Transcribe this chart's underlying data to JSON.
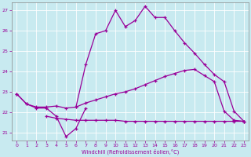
{
  "xlabel": "Windchill (Refroidissement éolien,°C)",
  "bg_color": "#c8eaf0",
  "line_color": "#990099",
  "grid_color": "#ffffff",
  "xlim": [
    -0.5,
    23.5
  ],
  "ylim": [
    20.6,
    27.4
  ],
  "yticks": [
    21,
    22,
    23,
    24,
    25,
    26,
    27
  ],
  "xticks": [
    0,
    1,
    2,
    3,
    4,
    5,
    6,
    7,
    8,
    9,
    10,
    11,
    12,
    13,
    14,
    15,
    16,
    17,
    18,
    19,
    20,
    21,
    22,
    23
  ],
  "line1_x": [
    0,
    1,
    2,
    3,
    4,
    5,
    6,
    7
  ],
  "line1_y": [
    22.9,
    22.4,
    22.2,
    22.2,
    21.8,
    20.8,
    21.2,
    22.2
  ],
  "line2_x": [
    3,
    4,
    5,
    6,
    7,
    8,
    9,
    10,
    11,
    12,
    13,
    14,
    15,
    16,
    17,
    18,
    19,
    20,
    21,
    22,
    23
  ],
  "line2_y": [
    21.8,
    21.7,
    21.65,
    21.6,
    21.6,
    21.6,
    21.6,
    21.6,
    21.55,
    21.55,
    21.55,
    21.55,
    21.55,
    21.55,
    21.55,
    21.55,
    21.55,
    21.55,
    21.55,
    21.55,
    21.55
  ],
  "line3_x": [
    0,
    1,
    2,
    3,
    4,
    5,
    6,
    7,
    8,
    9,
    10,
    11,
    12,
    13,
    14,
    15,
    16,
    17,
    18,
    19,
    20,
    21,
    22,
    23
  ],
  "line3_y": [
    22.9,
    22.4,
    22.25,
    22.25,
    22.3,
    22.2,
    22.25,
    22.45,
    22.6,
    22.75,
    22.9,
    23.0,
    23.15,
    23.35,
    23.55,
    23.75,
    23.9,
    24.05,
    24.1,
    23.8,
    23.5,
    22.05,
    21.6,
    21.55
  ],
  "line4_x": [
    6,
    7,
    8,
    9,
    10,
    11,
    12,
    13,
    14,
    15,
    16,
    17,
    18,
    19,
    20,
    21,
    22,
    23
  ],
  "line4_y": [
    22.25,
    24.35,
    25.85,
    26.0,
    27.0,
    26.2,
    26.5,
    27.2,
    26.65,
    26.65,
    26.0,
    25.4,
    24.9,
    24.35,
    23.85,
    23.5,
    22.05,
    21.55
  ]
}
